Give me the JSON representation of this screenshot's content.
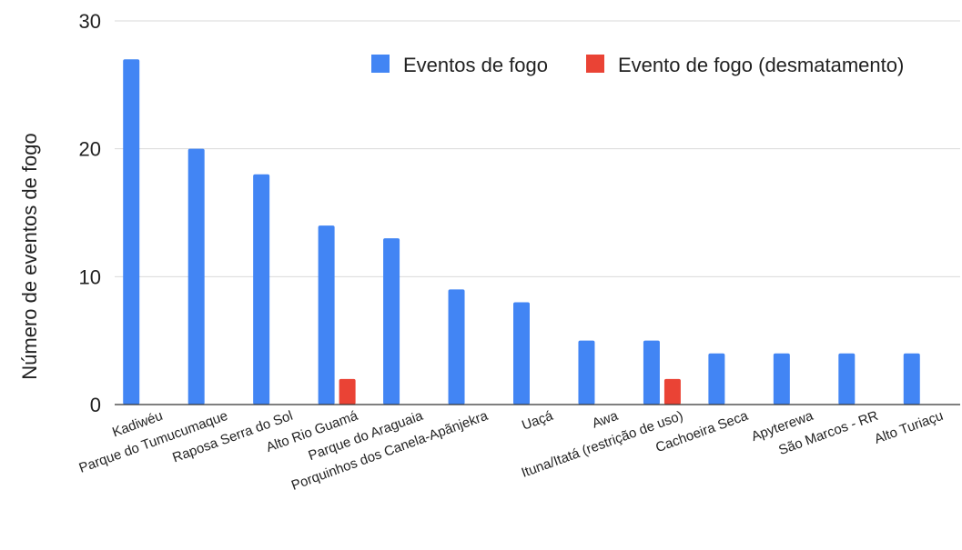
{
  "chart_data": {
    "type": "bar",
    "title": "",
    "xlabel": "",
    "ylabel": "Número de eventos de fogo",
    "ylim": [
      0,
      30
    ],
    "yticks": [
      0,
      10,
      20,
      30
    ],
    "grid": true,
    "legend_position": "top-right",
    "categories": [
      "Kadiwéu",
      "Parque do Tumucumaque",
      "Raposa Serra do Sol",
      "Alto Rio Guamá",
      "Parque do Araguaia",
      "Porquinhos dos Canela-Apãnjekra",
      "Uaçá",
      "Awa",
      "Ituna/Itatá (restrição de uso)",
      "Cachoeira Seca",
      "Apyterewa",
      "São Marcos - RR",
      "Alto Turiaçu"
    ],
    "series": [
      {
        "name": "Eventos de fogo",
        "color": "#4285f4",
        "values": [
          27,
          20,
          18,
          14,
          13,
          9,
          8,
          5,
          5,
          4,
          4,
          4,
          4
        ]
      },
      {
        "name": "Evento de fogo (desmatamento)",
        "color": "#ea4335",
        "values": [
          0,
          0,
          0,
          2,
          0,
          0,
          0,
          0,
          2,
          0,
          0,
          0,
          0
        ]
      }
    ]
  }
}
